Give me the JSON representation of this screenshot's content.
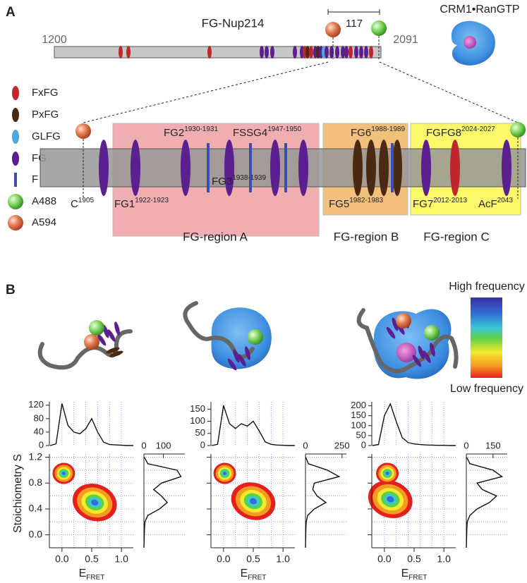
{
  "panel_a": {
    "label": "A",
    "protein": "FG-Nup214",
    "span": "117",
    "start": "1200",
    "end": "2091",
    "complex": "CRM1•RanGTP",
    "legend": [
      "FxFG",
      "PxFG",
      "GLFG",
      "FG",
      "F",
      "A488",
      "A594"
    ],
    "sites": [
      {
        "name": "C",
        "residue": "1905"
      },
      {
        "name": "FG1",
        "residue": "1922-1923"
      },
      {
        "name": "FG2",
        "residue": "1930-1931"
      },
      {
        "name": "FG3",
        "residue": "1938-1939"
      },
      {
        "name": "FSSG4",
        "residue": "1947-1950"
      },
      {
        "name": "FG5",
        "residue": "1982-1983"
      },
      {
        "name": "FG6",
        "residue": "1988-1989"
      },
      {
        "name": "FG7",
        "residue": "2012-2013"
      },
      {
        "name": "FGFG8",
        "residue": "2024-2027"
      },
      {
        "name": "AcF",
        "residue": "2043"
      }
    ],
    "regions": [
      "FG-region A",
      "FG-region B",
      "FG-region C"
    ]
  },
  "panel_b": {
    "label": "B",
    "scale_high": "High frequency",
    "scale_low": "Low frequency",
    "ylabel": "Stoichiometry S",
    "xlabel": "E",
    "xlabel_sub": "FRET",
    "xlim": [
      -0.2,
      1.2
    ],
    "xticks": [
      {
        "value": 0,
        "label": "0.0"
      },
      {
        "value": 0.5,
        "label": "0.5"
      },
      {
        "value": 1,
        "label": "1.0"
      }
    ],
    "ylim": [
      -0.2,
      1.25
    ],
    "yticks": [
      {
        "value": 0,
        "label": "0.0"
      },
      {
        "value": 0.4,
        "label": "0.4"
      },
      {
        "value": 0.8,
        "label": "0.8"
      },
      {
        "value": 1.2,
        "label": "1.2"
      }
    ],
    "xgrid": [
      0,
      0.2,
      0.4,
      0.6,
      0.8,
      1.0
    ],
    "ygrid": [
      0,
      0.2,
      0.4,
      0.6,
      0.8,
      1.0,
      1.2
    ],
    "plots": [
      {
        "top": {
          "ylim": [
            0,
            130
          ],
          "yticks": [
            0,
            40,
            80,
            120
          ],
          "x": [
            -0.2,
            -0.1,
            0,
            0.1,
            0.2,
            0.3,
            0.4,
            0.5,
            0.6,
            0.7,
            0.8,
            0.9,
            1.0,
            1.1,
            1.2
          ],
          "values": [
            0,
            5,
            125,
            60,
            40,
            35,
            50,
            80,
            40,
            10,
            3,
            2,
            1,
            0,
            0
          ]
        },
        "side": {
          "xlim": [
            0,
            210
          ],
          "xticks": [
            0,
            100
          ],
          "y": [
            -0.2,
            -0.1,
            0,
            0.1,
            0.2,
            0.3,
            0.4,
            0.5,
            0.6,
            0.7,
            0.8,
            0.9,
            1.0,
            1.1,
            1.2
          ],
          "values": [
            0,
            1,
            2,
            3,
            5,
            20,
            80,
            120,
            90,
            50,
            90,
            190,
            170,
            20,
            2
          ]
        },
        "populations": [
          {
            "E": 0.55,
            "S": 0.5
          },
          {
            "E": 0.03,
            "S": 0.95
          }
        ]
      },
      {
        "top": {
          "ylim": [
            0,
            180
          ],
          "yticks": [
            0,
            50,
            100,
            150
          ],
          "x": [
            -0.2,
            -0.1,
            0,
            0.1,
            0.2,
            0.3,
            0.4,
            0.5,
            0.6,
            0.7,
            0.8,
            0.9,
            1.0,
            1.1,
            1.2
          ],
          "values": [
            0,
            5,
            165,
            90,
            70,
            90,
            80,
            100,
            60,
            15,
            5,
            2,
            1,
            0,
            0
          ]
        },
        "side": {
          "xlim": [
            0,
            280
          ],
          "xticks": [
            0,
            250
          ],
          "y": [
            -0.2,
            -0.1,
            0,
            0.1,
            0.2,
            0.3,
            0.4,
            0.5,
            0.6,
            0.7,
            0.8,
            0.9,
            1.0,
            1.1,
            1.2
          ],
          "values": [
            0,
            1,
            2,
            3,
            5,
            15,
            60,
            140,
            80,
            50,
            60,
            230,
            150,
            20,
            2
          ]
        },
        "populations": [
          {
            "E": 0.5,
            "S": 0.52
          },
          {
            "E": 0.02,
            "S": 0.95
          }
        ]
      },
      {
        "top": {
          "ylim": [
            0,
            220
          ],
          "yticks": [
            0,
            50,
            100,
            150,
            200
          ],
          "x": [
            -0.2,
            -0.1,
            0,
            0.1,
            0.2,
            0.3,
            0.4,
            0.5,
            0.6,
            0.7,
            0.8,
            0.9,
            1.0,
            1.1,
            1.2
          ],
          "values": [
            0,
            5,
            150,
            210,
            120,
            40,
            15,
            8,
            5,
            3,
            2,
            1,
            1,
            0,
            0
          ]
        },
        "side": {
          "xlim": [
            0,
            230
          ],
          "xticks": [
            0,
            150
          ],
          "y": [
            -0.2,
            -0.1,
            0,
            0.1,
            0.2,
            0.3,
            0.4,
            0.5,
            0.6,
            0.7,
            0.8,
            0.9,
            1.0,
            1.1,
            1.2
          ],
          "values": [
            0,
            1,
            2,
            3,
            5,
            20,
            60,
            130,
            170,
            90,
            60,
            200,
            150,
            20,
            2
          ]
        },
        "populations": [
          {
            "E": 0.1,
            "S": 0.55
          },
          {
            "E": 0.05,
            "S": 0.95
          }
        ]
      }
    ]
  }
}
